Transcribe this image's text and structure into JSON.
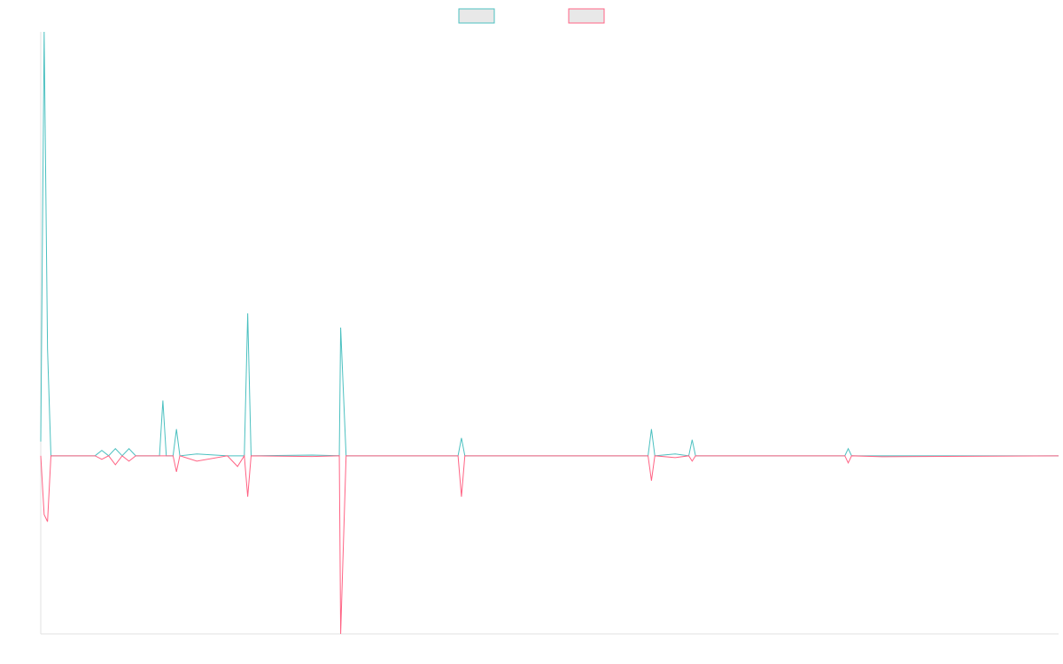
{
  "chart_data": {
    "type": "line",
    "title": "",
    "xlabel": "",
    "ylabel": "",
    "legend_position": "top-center",
    "grid": false,
    "x_count": 150,
    "ylim": [
      -1.0,
      2.38
    ],
    "series": [
      {
        "color": "#4bc0c0",
        "points": [
          [
            0,
            0.08
          ],
          [
            0.5,
            2.38
          ],
          [
            1,
            0.6
          ],
          [
            1.5,
            0
          ],
          [
            8,
            0
          ],
          [
            9,
            0.03
          ],
          [
            10,
            0
          ],
          [
            11,
            0.04
          ],
          [
            12,
            0
          ],
          [
            13,
            0.04
          ],
          [
            14,
            0
          ],
          [
            17.5,
            0
          ],
          [
            18,
            0.31
          ],
          [
            18.5,
            0
          ],
          [
            19.5,
            0
          ],
          [
            20,
            0.15
          ],
          [
            20.5,
            0
          ],
          [
            23,
            0.01
          ],
          [
            27.5,
            0
          ],
          [
            30,
            0
          ],
          [
            30.5,
            0.8
          ],
          [
            31,
            0
          ],
          [
            40,
            0.004
          ],
          [
            44,
            0
          ],
          [
            44.2,
            0.72
          ],
          [
            45,
            0
          ],
          [
            61.5,
            0
          ],
          [
            62,
            0.1
          ],
          [
            62.5,
            0
          ],
          [
            89.5,
            0
          ],
          [
            90,
            0.15
          ],
          [
            90.5,
            0
          ],
          [
            93.5,
            0.01
          ],
          [
            95.5,
            0
          ],
          [
            96,
            0.09
          ],
          [
            96.5,
            0
          ],
          [
            118.5,
            0
          ],
          [
            119,
            0.04
          ],
          [
            119.5,
            0
          ],
          [
            124,
            0
          ],
          [
            150,
            0
          ]
        ]
      },
      {
        "color": "#ff6384",
        "points": [
          [
            0,
            0
          ],
          [
            0.5,
            -0.33
          ],
          [
            1,
            -0.37
          ],
          [
            1.5,
            0
          ],
          [
            8,
            0
          ],
          [
            9,
            -0.02
          ],
          [
            10,
            0
          ],
          [
            11,
            -0.05
          ],
          [
            12,
            0
          ],
          [
            13,
            -0.03
          ],
          [
            14,
            0
          ],
          [
            17.5,
            0
          ],
          [
            18,
            0
          ],
          [
            19.5,
            0
          ],
          [
            20,
            -0.09
          ],
          [
            20.5,
            0
          ],
          [
            23,
            -0.03
          ],
          [
            27.5,
            0
          ],
          [
            29,
            -0.06
          ],
          [
            30,
            0
          ],
          [
            30.5,
            -0.23
          ],
          [
            31,
            0
          ],
          [
            40,
            -0.004
          ],
          [
            44,
            0
          ],
          [
            44.2,
            -1.0
          ],
          [
            45,
            0
          ],
          [
            61.5,
            0
          ],
          [
            62,
            -0.23
          ],
          [
            62.5,
            0
          ],
          [
            89.5,
            0
          ],
          [
            90,
            -0.14
          ],
          [
            90.5,
            0
          ],
          [
            93.5,
            -0.01
          ],
          [
            95.5,
            0
          ],
          [
            96,
            -0.03
          ],
          [
            96.5,
            0
          ],
          [
            118.5,
            0
          ],
          [
            119,
            -0.04
          ],
          [
            119.5,
            0
          ],
          [
            124,
            -0.005
          ],
          [
            150,
            0
          ]
        ]
      }
    ]
  }
}
